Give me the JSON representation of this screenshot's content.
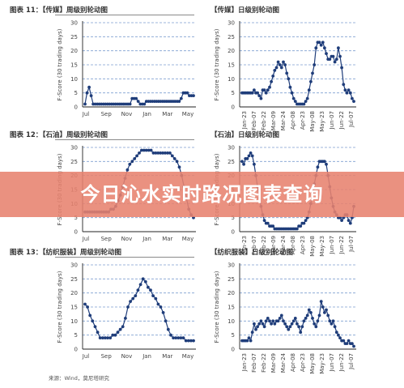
{
  "banner": {
    "text": "今日沁水实时路况图表查询"
  },
  "source": "来源：Wind，莫尼塔研究",
  "chart_data": [
    {
      "type": "line",
      "title": "图表 11：【传媒】周级别轮动图",
      "ylabel": "F-Score (30 trading days)",
      "ylim": [
        0,
        30
      ],
      "yticks": [
        0,
        5,
        10,
        15,
        20,
        25,
        30
      ],
      "xticklabels": [
        "Jul",
        "Sep",
        "Nov",
        "Jan",
        "Mar",
        "May"
      ],
      "series": [
        {
          "values": [
            1,
            5,
            7,
            4,
            1,
            1,
            1,
            1,
            1,
            1,
            1,
            1,
            1,
            1,
            1,
            1,
            1,
            1,
            1,
            1,
            1,
            1,
            1,
            3,
            3,
            3,
            2,
            1,
            1,
            1,
            2,
            2,
            2,
            2,
            2,
            2,
            2,
            2,
            2,
            2,
            2,
            2,
            2,
            2,
            2,
            2,
            2,
            3,
            5,
            5,
            5,
            4,
            4,
            4
          ]
        }
      ]
    },
    {
      "type": "line",
      "title": "【传媒】日级别轮动图",
      "ylabel": "F-Score (30 trading days)",
      "ylim": [
        0,
        30
      ],
      "yticks": [
        0,
        5,
        10,
        15,
        20,
        25,
        30
      ],
      "xticklabels": [
        "Jan-23",
        "Feb-07",
        "Feb-22",
        "Mar-09",
        "Mar-24",
        "Apr-08",
        "Apr-23",
        "May-08",
        "May-23",
        "Jun-07",
        "Jun-22",
        "Jul-07"
      ],
      "series": [
        {
          "values": [
            5,
            5,
            5,
            5,
            5,
            5,
            5,
            6,
            5,
            5,
            4,
            3,
            6,
            6,
            5,
            6,
            7,
            9,
            11,
            13,
            14,
            16,
            15,
            14,
            16,
            15,
            12,
            10,
            7,
            5,
            3,
            2,
            1,
            1,
            1,
            1,
            1,
            2,
            3,
            6,
            9,
            12,
            15,
            21,
            23,
            23,
            22,
            23,
            21,
            19,
            17,
            17,
            18,
            18,
            16,
            17,
            21,
            18,
            14,
            8,
            6,
            5,
            6,
            5,
            3,
            2
          ]
        }
      ]
    },
    {
      "type": "line",
      "title": "图表 12：【石油】周级别轮动图",
      "ylabel": "F-Score (30 trading days)",
      "ylim": [
        0,
        30
      ],
      "yticks": [
        0,
        5,
        10,
        15,
        20,
        25,
        30
      ],
      "xticklabels": [
        "Jul",
        "Sep",
        "Nov",
        "Jan",
        "Mar",
        "May"
      ],
      "series": [
        {
          "values": [
            7,
            7,
            7,
            7,
            7,
            7,
            7,
            7,
            7,
            7,
            7,
            8,
            8,
            9,
            11,
            13,
            16,
            19,
            22,
            24,
            25,
            26,
            27,
            28,
            29,
            29,
            29,
            29,
            29,
            28,
            28,
            28,
            28,
            28,
            28,
            28,
            28,
            27,
            26,
            25,
            23,
            20,
            16,
            12,
            8,
            6,
            5
          ]
        }
      ]
    },
    {
      "type": "line",
      "title": "【石油】日级别轮动图",
      "ylabel": "F-Score (30 trading days)",
      "ylim": [
        0,
        30
      ],
      "yticks": [
        0,
        5,
        10,
        15,
        20,
        25,
        30
      ],
      "xticklabels": [
        "Jan-23",
        "Feb-07",
        "Feb-22",
        "Mar-09",
        "Mar-24",
        "Apr-08",
        "Apr-23",
        "May-08",
        "May-23",
        "Jun-07",
        "Jun-22",
        "Jul-07"
      ],
      "series": [
        {
          "values": [
            25,
            24,
            26,
            26,
            27,
            28,
            27,
            24,
            20,
            16,
            12,
            9,
            6,
            4,
            3,
            3,
            2,
            2,
            2,
            1,
            1,
            1,
            1,
            1,
            1,
            1,
            1,
            1,
            1,
            1,
            1,
            1,
            1,
            2,
            2,
            3,
            3,
            4,
            5,
            7,
            10,
            14,
            17,
            20,
            23,
            25,
            25,
            25,
            25,
            24,
            20,
            16,
            12,
            9,
            7,
            6,
            5,
            5,
            4,
            5,
            6,
            6,
            4,
            3,
            5,
            9
          ]
        }
      ]
    },
    {
      "type": "line",
      "title": "图表 13：【纺织服装】周级别轮动图",
      "ylabel": "F-Score (30 trading days)",
      "ylim": [
        0,
        30
      ],
      "yticks": [
        0,
        5,
        10,
        15,
        20,
        25,
        30
      ],
      "xticklabels": [
        "Jul",
        "Sep",
        "Nov",
        "Jan",
        "Mar",
        "May"
      ],
      "series": [
        {
          "values": [
            16,
            15,
            12,
            10,
            8,
            6,
            4,
            4,
            4,
            4,
            4,
            5,
            5,
            6,
            7,
            8,
            11,
            15,
            17,
            18,
            19,
            21,
            23,
            25,
            24,
            22,
            21,
            19,
            18,
            16,
            15,
            13,
            10,
            7,
            5,
            4,
            4,
            4,
            4,
            4,
            3,
            3,
            3,
            3
          ]
        }
      ]
    },
    {
      "type": "line",
      "title": "【纺织服装】日级别轮动图",
      "ylabel": "F-Score (30 trading days)",
      "ylim": [
        0,
        30
      ],
      "yticks": [
        0,
        5,
        10,
        15,
        20,
        25,
        30
      ],
      "xticklabels": [
        "Jan-23",
        "Feb-07",
        "Feb-22",
        "Mar-09",
        "Mar-24",
        "Apr-08",
        "Apr-23",
        "May-08",
        "May-23",
        "Jun-07",
        "Jun-22",
        "Jul-07"
      ],
      "series": [
        {
          "values": [
            3,
            3,
            3,
            3,
            4,
            3,
            6,
            9,
            7,
            8,
            9,
            10,
            9,
            8,
            10,
            11,
            10,
            9,
            10,
            9,
            10,
            10,
            11,
            12,
            10,
            9,
            8,
            7,
            8,
            9,
            10,
            11,
            9,
            8,
            6,
            8,
            10,
            11,
            12,
            14,
            13,
            11,
            9,
            8,
            10,
            12,
            17,
            15,
            13,
            14,
            12,
            10,
            9,
            10,
            8,
            6,
            5,
            4,
            3,
            3,
            2,
            2,
            3,
            2,
            2,
            1
          ]
        }
      ]
    }
  ],
  "colors": {
    "line": "#1f3d7a",
    "marker": "#1f3d7a",
    "grid": "#7f9fd0",
    "banner": "#e7826e"
  },
  "icons": {
    "marker": "filled-circle"
  }
}
